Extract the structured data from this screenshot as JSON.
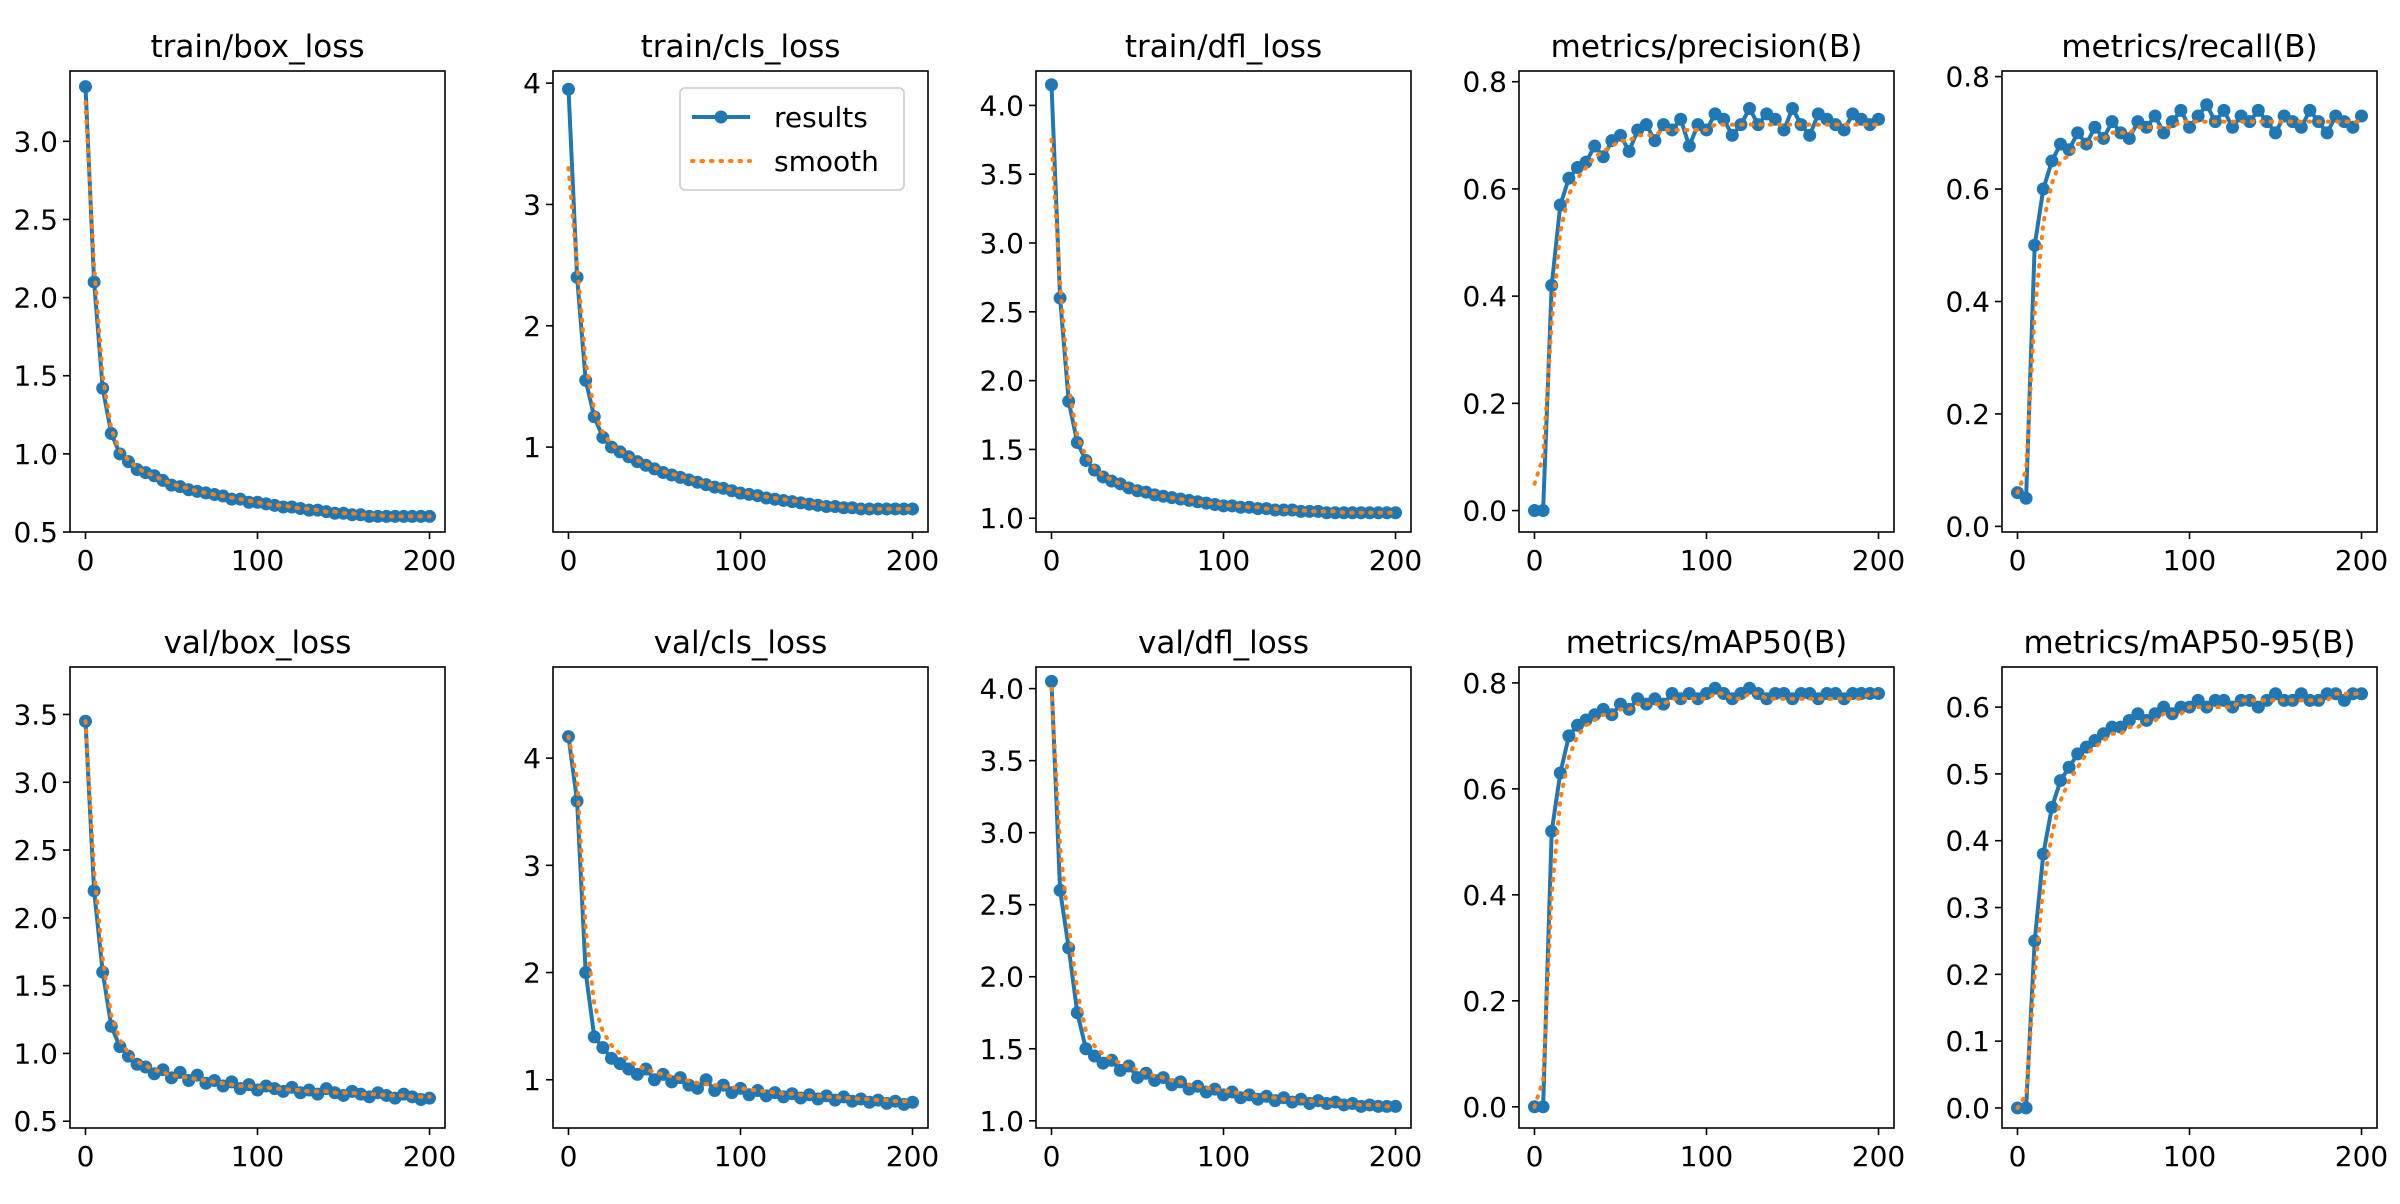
{
  "colors": {
    "results": "#1f77b4",
    "smooth": "#ff7f0e",
    "axes": "#000000"
  },
  "legend": {
    "placement": "upper right",
    "panel": 1,
    "labels": [
      "results",
      "smooth"
    ]
  },
  "chart_data": [
    {
      "type": "line",
      "title": "train/box_loss",
      "xlim": [
        -9,
        209
      ],
      "ylim": [
        0.5,
        3.45
      ],
      "xticks": [
        0,
        100,
        200
      ],
      "xtick_labels": [
        "0",
        "100",
        "200"
      ],
      "yticks": [
        0.5,
        1.0,
        1.5,
        2.0,
        2.5,
        3.0
      ],
      "ytick_labels": [
        "0.5",
        "1.0",
        "1.5",
        "2.0",
        "2.5",
        "3.0"
      ],
      "x_step": 5,
      "results": [
        3.35,
        2.1,
        1.42,
        1.13,
        1.0,
        0.95,
        0.9,
        0.88,
        0.86,
        0.83,
        0.8,
        0.79,
        0.77,
        0.76,
        0.75,
        0.74,
        0.73,
        0.71,
        0.71,
        0.69,
        0.69,
        0.68,
        0.67,
        0.66,
        0.66,
        0.65,
        0.64,
        0.64,
        0.63,
        0.62,
        0.62,
        0.61,
        0.61,
        0.6,
        0.6,
        0.6,
        0.6,
        0.6,
        0.6,
        0.6,
        0.6
      ],
      "smooth": [
        3.25,
        2.2,
        1.5,
        1.16,
        1.02,
        0.96,
        0.91,
        0.88,
        0.86,
        0.83,
        0.81,
        0.79,
        0.78,
        0.76,
        0.75,
        0.74,
        0.73,
        0.72,
        0.71,
        0.7,
        0.69,
        0.68,
        0.67,
        0.67,
        0.66,
        0.65,
        0.65,
        0.64,
        0.63,
        0.63,
        0.62,
        0.62,
        0.61,
        0.61,
        0.61,
        0.6,
        0.6,
        0.6,
        0.6,
        0.6,
        0.6
      ]
    },
    {
      "type": "line",
      "title": "train/cls_loss",
      "xlim": [
        -9,
        209
      ],
      "ylim": [
        0.3,
        4.1
      ],
      "xticks": [
        0,
        100,
        200
      ],
      "xtick_labels": [
        "0",
        "100",
        "200"
      ],
      "yticks": [
        1,
        2,
        3,
        4
      ],
      "ytick_labels": [
        "1",
        "2",
        "3",
        "4"
      ],
      "x_step": 5,
      "results": [
        3.95,
        2.4,
        1.55,
        1.25,
        1.08,
        1.0,
        0.96,
        0.92,
        0.88,
        0.85,
        0.82,
        0.79,
        0.77,
        0.75,
        0.73,
        0.71,
        0.69,
        0.67,
        0.66,
        0.64,
        0.62,
        0.61,
        0.6,
        0.58,
        0.57,
        0.56,
        0.55,
        0.54,
        0.53,
        0.52,
        0.51,
        0.51,
        0.5,
        0.5,
        0.49,
        0.49,
        0.49,
        0.49,
        0.49,
        0.49,
        0.49
      ],
      "smooth": [
        3.3,
        2.5,
        1.7,
        1.3,
        1.12,
        1.02,
        0.97,
        0.93,
        0.89,
        0.86,
        0.83,
        0.8,
        0.78,
        0.76,
        0.74,
        0.72,
        0.7,
        0.68,
        0.66,
        0.65,
        0.63,
        0.62,
        0.6,
        0.59,
        0.58,
        0.57,
        0.56,
        0.55,
        0.54,
        0.53,
        0.52,
        0.51,
        0.51,
        0.5,
        0.5,
        0.49,
        0.49,
        0.49,
        0.49,
        0.49,
        0.49
      ]
    },
    {
      "type": "line",
      "title": "train/dfl_loss",
      "xlim": [
        -9,
        209
      ],
      "ylim": [
        0.9,
        4.25
      ],
      "xticks": [
        0,
        100,
        200
      ],
      "xtick_labels": [
        "0",
        "100",
        "200"
      ],
      "yticks": [
        1.0,
        1.5,
        2.0,
        2.5,
        3.0,
        3.5,
        4.0
      ],
      "ytick_labels": [
        "1.0",
        "1.5",
        "2.0",
        "2.5",
        "3.0",
        "3.5",
        "4.0"
      ],
      "x_step": 5,
      "results": [
        4.15,
        2.6,
        1.85,
        1.55,
        1.42,
        1.35,
        1.3,
        1.27,
        1.25,
        1.22,
        1.2,
        1.19,
        1.17,
        1.16,
        1.15,
        1.14,
        1.13,
        1.12,
        1.11,
        1.1,
        1.09,
        1.09,
        1.08,
        1.08,
        1.07,
        1.07,
        1.06,
        1.06,
        1.06,
        1.05,
        1.05,
        1.05,
        1.04,
        1.04,
        1.04,
        1.04,
        1.04,
        1.04,
        1.04,
        1.04,
        1.04
      ],
      "smooth": [
        3.75,
        2.7,
        1.95,
        1.6,
        1.45,
        1.37,
        1.31,
        1.28,
        1.25,
        1.23,
        1.21,
        1.19,
        1.18,
        1.16,
        1.15,
        1.14,
        1.13,
        1.12,
        1.11,
        1.11,
        1.1,
        1.09,
        1.09,
        1.08,
        1.08,
        1.07,
        1.07,
        1.06,
        1.06,
        1.06,
        1.05,
        1.05,
        1.05,
        1.05,
        1.04,
        1.04,
        1.04,
        1.04,
        1.04,
        1.04,
        1.04
      ]
    },
    {
      "type": "line",
      "title": "metrics/precision(B)",
      "xlim": [
        -9,
        209
      ],
      "ylim": [
        -0.04,
        0.82
      ],
      "xticks": [
        0,
        100,
        200
      ],
      "xtick_labels": [
        "0",
        "100",
        "200"
      ],
      "yticks": [
        0.0,
        0.2,
        0.4,
        0.6,
        0.8
      ],
      "ytick_labels": [
        "0.0",
        "0.2",
        "0.4",
        "0.6",
        "0.8"
      ],
      "x_step": 5,
      "results": [
        0.0,
        0.0,
        0.42,
        0.57,
        0.62,
        0.64,
        0.65,
        0.68,
        0.66,
        0.69,
        0.7,
        0.67,
        0.71,
        0.72,
        0.69,
        0.72,
        0.71,
        0.73,
        0.68,
        0.72,
        0.71,
        0.74,
        0.73,
        0.7,
        0.72,
        0.75,
        0.72,
        0.74,
        0.73,
        0.71,
        0.75,
        0.72,
        0.7,
        0.74,
        0.73,
        0.72,
        0.71,
        0.74,
        0.73,
        0.72,
        0.73
      ],
      "smooth": [
        0.05,
        0.1,
        0.35,
        0.52,
        0.59,
        0.62,
        0.64,
        0.66,
        0.67,
        0.68,
        0.69,
        0.69,
        0.7,
        0.7,
        0.7,
        0.71,
        0.71,
        0.71,
        0.71,
        0.71,
        0.71,
        0.72,
        0.72,
        0.72,
        0.72,
        0.72,
        0.72,
        0.72,
        0.72,
        0.72,
        0.72,
        0.72,
        0.72,
        0.72,
        0.72,
        0.72,
        0.72,
        0.72,
        0.72,
        0.72,
        0.72
      ]
    },
    {
      "type": "line",
      "title": "metrics/recall(B)",
      "xlim": [
        -9,
        209
      ],
      "ylim": [
        -0.01,
        0.81
      ],
      "xticks": [
        0,
        100,
        200
      ],
      "xtick_labels": [
        "0",
        "100",
        "200"
      ],
      "yticks": [
        0.0,
        0.2,
        0.4,
        0.6,
        0.8
      ],
      "ytick_labels": [
        "0.0",
        "0.2",
        "0.4",
        "0.6",
        "0.8"
      ],
      "x_step": 5,
      "results": [
        0.06,
        0.05,
        0.5,
        0.6,
        0.65,
        0.68,
        0.67,
        0.7,
        0.68,
        0.71,
        0.69,
        0.72,
        0.7,
        0.69,
        0.72,
        0.71,
        0.73,
        0.7,
        0.72,
        0.74,
        0.71,
        0.73,
        0.75,
        0.72,
        0.74,
        0.71,
        0.73,
        0.72,
        0.74,
        0.72,
        0.7,
        0.73,
        0.72,
        0.71,
        0.74,
        0.72,
        0.7,
        0.73,
        0.72,
        0.71,
        0.73
      ],
      "smooth": [
        0.06,
        0.1,
        0.38,
        0.54,
        0.61,
        0.65,
        0.66,
        0.68,
        0.68,
        0.69,
        0.69,
        0.7,
        0.7,
        0.7,
        0.71,
        0.71,
        0.71,
        0.71,
        0.71,
        0.72,
        0.72,
        0.72,
        0.72,
        0.72,
        0.72,
        0.72,
        0.72,
        0.72,
        0.72,
        0.72,
        0.72,
        0.72,
        0.72,
        0.72,
        0.72,
        0.72,
        0.72,
        0.72,
        0.72,
        0.72,
        0.72
      ]
    },
    {
      "type": "line",
      "title": "val/box_loss",
      "xlim": [
        -9,
        209
      ],
      "ylim": [
        0.45,
        3.85
      ],
      "xticks": [
        0,
        100,
        200
      ],
      "xtick_labels": [
        "0",
        "100",
        "200"
      ],
      "yticks": [
        0.5,
        1.0,
        1.5,
        2.0,
        2.5,
        3.0,
        3.5
      ],
      "ytick_labels": [
        "0.5",
        "1.0",
        "1.5",
        "2.0",
        "2.5",
        "3.0",
        "3.5"
      ],
      "x_step": 5,
      "results": [
        3.45,
        2.2,
        1.6,
        1.2,
        1.05,
        0.98,
        0.92,
        0.9,
        0.85,
        0.88,
        0.82,
        0.86,
        0.8,
        0.84,
        0.78,
        0.8,
        0.76,
        0.79,
        0.74,
        0.77,
        0.73,
        0.76,
        0.74,
        0.72,
        0.75,
        0.71,
        0.73,
        0.7,
        0.74,
        0.71,
        0.69,
        0.72,
        0.7,
        0.68,
        0.71,
        0.69,
        0.67,
        0.7,
        0.68,
        0.66,
        0.67
      ],
      "smooth": [
        3.45,
        2.35,
        1.7,
        1.28,
        1.1,
        1.0,
        0.94,
        0.91,
        0.88,
        0.86,
        0.84,
        0.83,
        0.82,
        0.81,
        0.8,
        0.79,
        0.78,
        0.77,
        0.76,
        0.76,
        0.75,
        0.75,
        0.74,
        0.74,
        0.73,
        0.73,
        0.72,
        0.72,
        0.72,
        0.71,
        0.71,
        0.71,
        0.7,
        0.7,
        0.7,
        0.69,
        0.69,
        0.69,
        0.68,
        0.68,
        0.68
      ]
    },
    {
      "type": "line",
      "title": "val/cls_loss",
      "xlim": [
        -9,
        209
      ],
      "ylim": [
        0.55,
        4.85
      ],
      "xticks": [
        0,
        100,
        200
      ],
      "xtick_labels": [
        "0",
        "100",
        "200"
      ],
      "yticks": [
        1,
        2,
        3,
        4
      ],
      "ytick_labels": [
        "1",
        "2",
        "3",
        "4"
      ],
      "x_step": 5,
      "results": [
        4.2,
        3.6,
        2.0,
        1.4,
        1.3,
        1.2,
        1.15,
        1.1,
        1.05,
        1.1,
        1.0,
        1.05,
        0.98,
        1.02,
        0.95,
        0.92,
        1.0,
        0.9,
        0.95,
        0.88,
        0.92,
        0.86,
        0.9,
        0.85,
        0.88,
        0.84,
        0.87,
        0.83,
        0.86,
        0.82,
        0.85,
        0.81,
        0.84,
        0.8,
        0.82,
        0.79,
        0.81,
        0.78,
        0.8,
        0.77,
        0.79
      ],
      "smooth": [
        4.2,
        3.8,
        2.4,
        1.7,
        1.45,
        1.32,
        1.24,
        1.18,
        1.13,
        1.1,
        1.07,
        1.05,
        1.03,
        1.01,
        0.99,
        0.97,
        0.96,
        0.95,
        0.94,
        0.93,
        0.92,
        0.91,
        0.9,
        0.89,
        0.88,
        0.87,
        0.87,
        0.86,
        0.85,
        0.85,
        0.84,
        0.84,
        0.83,
        0.83,
        0.82,
        0.82,
        0.81,
        0.81,
        0.8,
        0.8,
        0.8
      ]
    },
    {
      "type": "line",
      "title": "val/dfl_loss",
      "xlim": [
        -9,
        209
      ],
      "ylim": [
        0.95,
        4.15
      ],
      "xticks": [
        0,
        100,
        200
      ],
      "xtick_labels": [
        "0",
        "100",
        "200"
      ],
      "yticks": [
        1.0,
        1.5,
        2.0,
        2.5,
        3.0,
        3.5,
        4.0
      ],
      "ytick_labels": [
        "1.0",
        "1.5",
        "2.0",
        "2.5",
        "3.0",
        "3.5",
        "4.0"
      ],
      "x_step": 5,
      "results": [
        4.05,
        2.6,
        2.2,
        1.75,
        1.5,
        1.45,
        1.4,
        1.42,
        1.35,
        1.38,
        1.3,
        1.33,
        1.28,
        1.3,
        1.25,
        1.27,
        1.22,
        1.24,
        1.2,
        1.22,
        1.18,
        1.2,
        1.16,
        1.18,
        1.15,
        1.17,
        1.14,
        1.16,
        1.13,
        1.15,
        1.12,
        1.14,
        1.12,
        1.13,
        1.11,
        1.12,
        1.1,
        1.11,
        1.1,
        1.1,
        1.1
      ],
      "smooth": [
        4.0,
        2.9,
        2.35,
        1.9,
        1.62,
        1.52,
        1.46,
        1.43,
        1.4,
        1.38,
        1.35,
        1.33,
        1.31,
        1.3,
        1.28,
        1.27,
        1.25,
        1.24,
        1.23,
        1.22,
        1.21,
        1.2,
        1.19,
        1.18,
        1.17,
        1.17,
        1.16,
        1.15,
        1.15,
        1.14,
        1.14,
        1.13,
        1.13,
        1.12,
        1.12,
        1.12,
        1.11,
        1.11,
        1.11,
        1.1,
        1.1
      ]
    },
    {
      "type": "line",
      "title": "metrics/mAP50(B)",
      "xlim": [
        -9,
        209
      ],
      "ylim": [
        -0.04,
        0.83
      ],
      "xticks": [
        0,
        100,
        200
      ],
      "xtick_labels": [
        "0",
        "100",
        "200"
      ],
      "yticks": [
        0.0,
        0.2,
        0.4,
        0.6,
        0.8
      ],
      "ytick_labels": [
        "0.0",
        "0.2",
        "0.4",
        "0.6",
        "0.8"
      ],
      "x_step": 5,
      "results": [
        0.0,
        0.0,
        0.52,
        0.63,
        0.7,
        0.72,
        0.73,
        0.74,
        0.75,
        0.74,
        0.76,
        0.75,
        0.77,
        0.76,
        0.77,
        0.76,
        0.78,
        0.77,
        0.78,
        0.77,
        0.78,
        0.79,
        0.78,
        0.77,
        0.78,
        0.79,
        0.78,
        0.77,
        0.78,
        0.78,
        0.77,
        0.78,
        0.78,
        0.77,
        0.78,
        0.78,
        0.77,
        0.78,
        0.78,
        0.78,
        0.78
      ],
      "smooth": [
        0.0,
        0.05,
        0.4,
        0.58,
        0.66,
        0.7,
        0.72,
        0.73,
        0.74,
        0.74,
        0.75,
        0.75,
        0.76,
        0.76,
        0.76,
        0.76,
        0.77,
        0.77,
        0.77,
        0.77,
        0.77,
        0.78,
        0.78,
        0.77,
        0.77,
        0.78,
        0.78,
        0.77,
        0.77,
        0.77,
        0.77,
        0.77,
        0.77,
        0.77,
        0.77,
        0.77,
        0.77,
        0.77,
        0.77,
        0.78,
        0.78
      ]
    },
    {
      "type": "line",
      "title": "metrics/mAP50-95(B)",
      "xlim": [
        -9,
        209
      ],
      "ylim": [
        -0.03,
        0.66
      ],
      "xticks": [
        0,
        100,
        200
      ],
      "xtick_labels": [
        "0",
        "100",
        "200"
      ],
      "yticks": [
        0.0,
        0.1,
        0.2,
        0.3,
        0.4,
        0.5,
        0.6
      ],
      "ytick_labels": [
        "0.0",
        "0.1",
        "0.2",
        "0.3",
        "0.4",
        "0.5",
        "0.6"
      ],
      "x_step": 5,
      "results": [
        0.0,
        0.0,
        0.25,
        0.38,
        0.45,
        0.49,
        0.51,
        0.53,
        0.54,
        0.55,
        0.56,
        0.57,
        0.57,
        0.58,
        0.59,
        0.58,
        0.59,
        0.6,
        0.59,
        0.6,
        0.6,
        0.61,
        0.6,
        0.61,
        0.61,
        0.6,
        0.61,
        0.61,
        0.6,
        0.61,
        0.62,
        0.61,
        0.61,
        0.62,
        0.61,
        0.61,
        0.62,
        0.62,
        0.61,
        0.62,
        0.62
      ],
      "smooth": [
        0.0,
        0.02,
        0.2,
        0.33,
        0.41,
        0.46,
        0.49,
        0.51,
        0.53,
        0.54,
        0.55,
        0.56,
        0.56,
        0.57,
        0.57,
        0.58,
        0.58,
        0.59,
        0.59,
        0.59,
        0.6,
        0.6,
        0.6,
        0.6,
        0.6,
        0.6,
        0.61,
        0.61,
        0.61,
        0.61,
        0.61,
        0.61,
        0.61,
        0.61,
        0.61,
        0.61,
        0.61,
        0.62,
        0.62,
        0.62,
        0.62
      ]
    }
  ]
}
